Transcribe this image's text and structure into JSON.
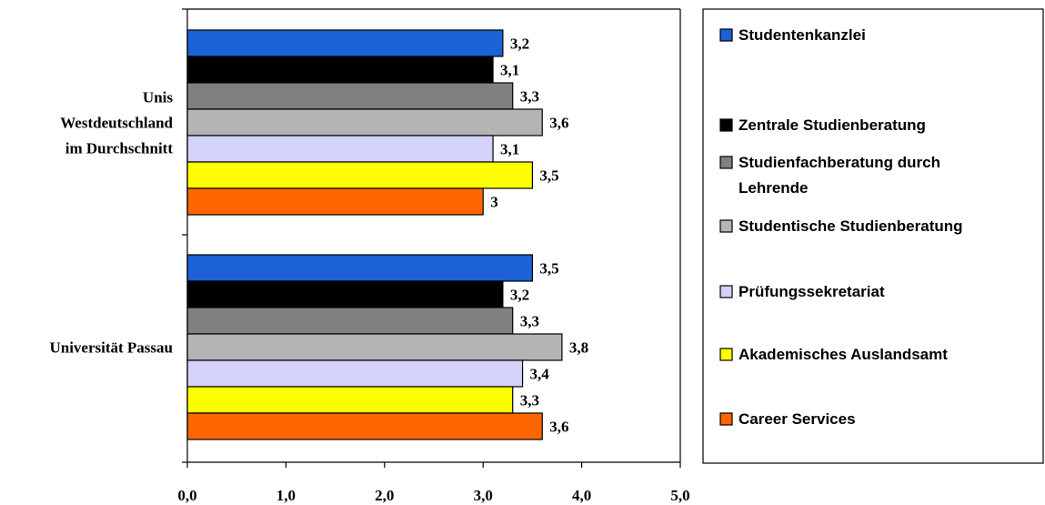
{
  "chart_data": {
    "type": "bar",
    "orientation": "horizontal",
    "title": "",
    "xlabel": "",
    "ylabel": "",
    "xlim": [
      0,
      5
    ],
    "x_ticks": [
      "0,0",
      "1,0",
      "2,0",
      "3,0",
      "4,0",
      "5,0"
    ],
    "grid": false,
    "legend_position": "right",
    "categories": [
      {
        "name": "Unis Westdeutschland im Durchschnitt",
        "lines": [
          "Unis",
          "Westdeutschland",
          "im Durchschnitt"
        ]
      },
      {
        "name": "Universität Passau",
        "lines": [
          "Universität Passau"
        ]
      }
    ],
    "series": [
      {
        "name": "Studentenkanzlei",
        "legend_lines": [
          "Studentenkanzlei"
        ],
        "color": "#1c62d6",
        "values": [
          3.2,
          3.5
        ],
        "labels": [
          "3,2",
          "3,5"
        ]
      },
      {
        "name": "Zentrale Studienberatung",
        "legend_lines": [
          "Zentrale Studienberatung"
        ],
        "color": "#000000",
        "values": [
          3.1,
          3.2
        ],
        "labels": [
          "3,1",
          "3,2"
        ]
      },
      {
        "name": "Studienfachberatung durch Lehrende",
        "legend_lines": [
          "Studienfachberatung durch",
          "Lehrende"
        ],
        "color": "#808080",
        "values": [
          3.3,
          3.3
        ],
        "labels": [
          "3,3",
          "3,3"
        ]
      },
      {
        "name": "Studentische Studienberatung",
        "legend_lines": [
          "Studentische Studienberatung"
        ],
        "color": "#b4b4b4",
        "values": [
          3.6,
          3.8
        ],
        "labels": [
          "3,6",
          "3,8"
        ]
      },
      {
        "name": "Prüfungssekretariat",
        "legend_lines": [
          "Prüfungssekretariat"
        ],
        "color": "#d2d2fa",
        "values": [
          3.1,
          3.4
        ],
        "labels": [
          "3,1",
          "3,4"
        ]
      },
      {
        "name": "Akademisches Auslandsamt",
        "legend_lines": [
          "Akademisches Auslandsamt"
        ],
        "color": "#ffff00",
        "values": [
          3.5,
          3.3
        ],
        "labels": [
          "3,5",
          "3,3"
        ]
      },
      {
        "name": "Career Services",
        "legend_lines": [
          "Career Services"
        ],
        "color": "#ff6600",
        "values": [
          3.0,
          3.6
        ],
        "labels": [
          "3",
          "3,6"
        ]
      }
    ]
  }
}
